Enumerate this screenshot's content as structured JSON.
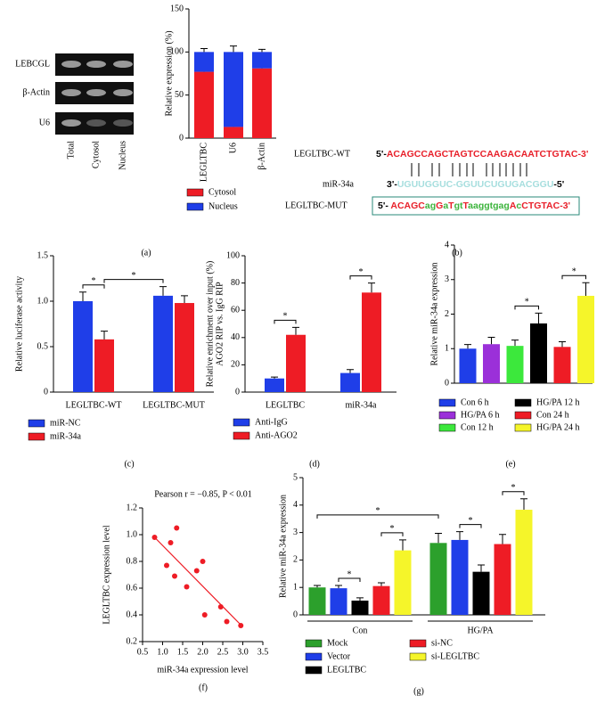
{
  "panel_labels": [
    "(a)",
    "(b)",
    "(c)",
    "(d)",
    "(e)",
    "(f)",
    "(g)"
  ],
  "gel": {
    "rows": [
      "LEBCGL",
      "β-Actin",
      "U6"
    ],
    "columns": [
      "Total",
      "Cytosol",
      "Nucleus"
    ]
  },
  "sequences": [
    {
      "label": "LEGLTBC-WT",
      "parts": [
        {
          "text": "5'-",
          "color": "#000000"
        },
        {
          "text": "ACAGCCAGCTAGTCCAAGACAATCTGTAC-3'",
          "color": "#e8202a"
        }
      ]
    },
    {
      "label": "miR-34a",
      "parts": [
        {
          "text": "3'-",
          "color": "#000000"
        },
        {
          "text": "UGUUGGUC-GGUUCUGUGACGGU",
          "color": "#a6dede"
        },
        {
          "text": "-5'",
          "color": "#000000"
        }
      ]
    },
    {
      "label": "LEGLTBC-MUT",
      "parts": [
        {
          "text": "5'- ",
          "color": "#000000"
        },
        {
          "text": "ACAGC",
          "color": "#e8202a"
        },
        {
          "text": "ag",
          "color": "#3cb43c"
        },
        {
          "text": "G",
          "color": "#e8202a"
        },
        {
          "text": "a",
          "color": "#3cb43c"
        },
        {
          "text": "T",
          "color": "#e8202a"
        },
        {
          "text": "gt",
          "color": "#3cb43c"
        },
        {
          "text": "T",
          "color": "#e8202a"
        },
        {
          "text": "aaggtgag",
          "color": "#3cb43c"
        },
        {
          "text": "A",
          "color": "#e8202a"
        },
        {
          "text": "c",
          "color": "#3cb43c"
        },
        {
          "text": "CTGTAC-3'",
          "color": "#e8202a"
        }
      ]
    }
  ],
  "chart_data": [
    {
      "type": "bar",
      "stacked": true,
      "ylabel": "Relative expression (%)",
      "categories": [
        "LEGLTBC",
        "U6",
        "β-Actin"
      ],
      "ylim": [
        0,
        150
      ],
      "yticks": [
        0,
        50,
        100,
        150
      ],
      "series": [
        {
          "name": "Cytosol",
          "color": "#ee1c25",
          "values": [
            77,
            13,
            81
          ],
          "errors": [
            5,
            3,
            6
          ]
        },
        {
          "name": "Nucleus",
          "color": "#1f3ee8",
          "values": [
            23,
            87,
            19
          ],
          "errors": [
            4,
            7,
            3
          ]
        }
      ]
    },
    {
      "type": "bar",
      "ylabel": "Relative luciferase activity",
      "categories": [
        "LEGLTBC-WT",
        "LEGLTBC-MUT"
      ],
      "ylim": [
        0,
        1.5
      ],
      "yticks": [
        0,
        0.5,
        {
          "value": 1,
          "label": "1.0"
        },
        1.5
      ],
      "series": [
        {
          "name": "miR-NC",
          "color": "#1f3ee8",
          "values": [
            1.0,
            1.06
          ],
          "errors": [
            0.1,
            0.1
          ]
        },
        {
          "name": "miR-34a",
          "color": "#ee1c25",
          "values": [
            0.58,
            0.98
          ],
          "errors": [
            0.09,
            0.08
          ]
        }
      ],
      "significance": [
        "*",
        "*"
      ]
    },
    {
      "type": "bar",
      "ylabel": [
        "Relative enrichment over input (%)",
        "AGO2 RIP vs. IgG RIP"
      ],
      "categories": [
        "LEGLTBC",
        "miR-34a"
      ],
      "ylim": [
        0,
        100
      ],
      "yticks": [
        0,
        20,
        40,
        60,
        80,
        100
      ],
      "series": [
        {
          "name": "Anti-IgG",
          "color": "#1f3ee8",
          "values": [
            10,
            14
          ],
          "errors": [
            1,
            2.5
          ]
        },
        {
          "name": "Anti-AGO2",
          "color": "#ee1c25",
          "values": [
            42,
            73
          ],
          "errors": [
            5.5,
            7
          ]
        }
      ],
      "significance": [
        "*",
        "*"
      ]
    },
    {
      "type": "bar",
      "ylabel": "Relative miR-34a expression",
      "ylim": [
        0,
        4
      ],
      "yticks": [
        0,
        1,
        2,
        3,
        4
      ],
      "series": [
        {
          "name": "Con 6 h",
          "color": "#1f3ee8",
          "values": [
            1.0
          ],
          "errors": [
            0.12
          ]
        },
        {
          "name": "HG/PA 12 h",
          "color": "#000000",
          "values": [
            1.73
          ],
          "errors": [
            0.3
          ]
        },
        {
          "name": "HG/PA 6 h",
          "color": "#9b30d9",
          "values": [
            1.13
          ],
          "errors": [
            0.2
          ]
        },
        {
          "name": "Con 24 h",
          "color": "#ee1c25",
          "values": [
            1.05
          ],
          "errors": [
            0.15
          ]
        },
        {
          "name": "Con 12 h",
          "color": "#3ce83c",
          "values": [
            1.08
          ],
          "errors": [
            0.17
          ]
        },
        {
          "name": "HG/PA 24 h",
          "color": "#f5f52a",
          "values": [
            2.53
          ],
          "errors": [
            0.38
          ]
        }
      ],
      "significance": [
        "*",
        "*"
      ]
    },
    {
      "type": "scatter",
      "title": "Pearson r = −0.85, P < 0.01",
      "xlabel": "miR-34a expression level",
      "ylabel": "LEGLTBC expression level",
      "xlim": [
        0.5,
        3.5
      ],
      "xticks": [
        0.5,
        {
          "value": 1,
          "label": "1.0"
        },
        1.5,
        {
          "value": 2,
          "label": "2.0"
        },
        2.5,
        {
          "value": 3,
          "label": "3.0"
        },
        3.5
      ],
      "ylim": [
        0.2,
        1.2
      ],
      "yticks": [
        0.2,
        0.4,
        0.6,
        0.8,
        {
          "value": 1,
          "label": "1.0"
        },
        1.2
      ],
      "color": "#ee1c25",
      "x": [
        0.8,
        1.1,
        1.2,
        1.3,
        1.35,
        1.6,
        1.85,
        2.0,
        2.05,
        2.45,
        2.6,
        2.95
      ],
      "y": [
        0.98,
        0.77,
        0.94,
        0.69,
        1.05,
        0.61,
        0.73,
        0.8,
        0.4,
        0.46,
        0.35,
        0.32
      ],
      "fit": {
        "x": [
          0.8,
          3.0
        ],
        "y": [
          0.98,
          0.31
        ]
      }
    },
    {
      "type": "bar",
      "ylabel": "Relative miR-34a expression",
      "categories": [
        "Con",
        "HG/PA"
      ],
      "ylim": [
        0,
        5
      ],
      "yticks": [
        0,
        1,
        2,
        3,
        4,
        5
      ],
      "series": [
        {
          "name": "Mock",
          "color": "#2ca02c",
          "values": [
            1.0,
            2.62
          ],
          "errors": [
            0.07,
            0.35
          ]
        },
        {
          "name": "Vector",
          "color": "#1f3ee8",
          "values": [
            0.97,
            2.73
          ],
          "errors": [
            0.1,
            0.3
          ]
        },
        {
          "name": "LEGLTBC",
          "color": "#000000",
          "values": [
            0.52,
            1.57
          ],
          "errors": [
            0.1,
            0.25
          ]
        },
        {
          "name": "si-NC",
          "color": "#ee1c25",
          "values": [
            1.05,
            2.58
          ],
          "errors": [
            0.12,
            0.35
          ]
        },
        {
          "name": "si-LEGLTBC",
          "color": "#f5f52a",
          "values": [
            2.35,
            3.83
          ],
          "errors": [
            0.38,
            0.4
          ]
        }
      ],
      "significance": [
        "*",
        "*",
        "*",
        "*",
        "*"
      ]
    }
  ]
}
